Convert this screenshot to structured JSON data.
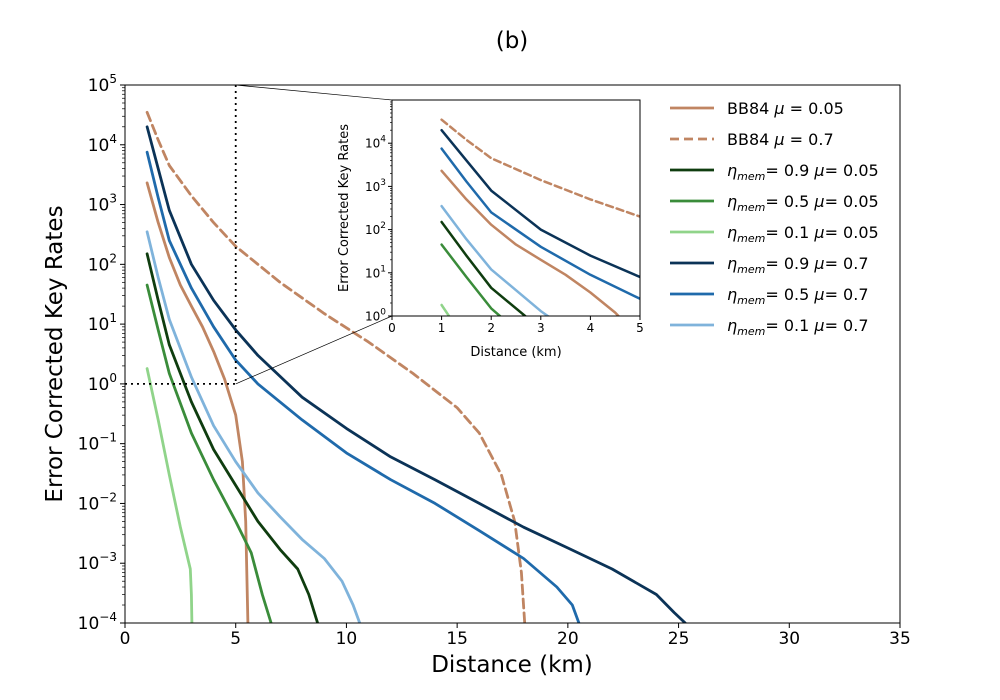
{
  "chart_data": {
    "type": "line",
    "title": "(b)",
    "xlabel": "Distance (km)",
    "ylabel": "Error Corrected Key Rates",
    "yscale": "log",
    "xlim": [
      0,
      35
    ],
    "ylim": [
      0.0001,
      100000
    ],
    "xticks": [
      "0",
      "5",
      "10",
      "15",
      "20",
      "25",
      "30",
      "35"
    ],
    "yticks": [
      {
        "base": "10",
        "exp": "−4"
      },
      {
        "base": "10",
        "exp": "−3"
      },
      {
        "base": "10",
        "exp": "−2"
      },
      {
        "base": "10",
        "exp": "−1"
      },
      {
        "base": "10",
        "exp": "0"
      },
      {
        "base": "10",
        "exp": "1"
      },
      {
        "base": "10",
        "exp": "2"
      },
      {
        "base": "10",
        "exp": "3"
      },
      {
        "base": "10",
        "exp": "4"
      },
      {
        "base": "10",
        "exp": "5"
      }
    ],
    "legend_position": "right",
    "series": [
      {
        "name": "BB84 μ = 0.05",
        "label_parts": [
          "BB84 ",
          "μ",
          " = 0.05"
        ],
        "color": "#c08562",
        "dash": "solid",
        "x": [
          1,
          1.5,
          2,
          2.5,
          3,
          3.5,
          4,
          4.5,
          5,
          5.3,
          5.45,
          5.55
        ],
        "y": [
          2300,
          500,
          130,
          45,
          20,
          9,
          3.5,
          1.2,
          0.3,
          0.05,
          0.005,
          0.0001
        ]
      },
      {
        "name": "BB84 μ = 0.7",
        "label_parts": [
          "BB84 ",
          "μ",
          " = 0.7"
        ],
        "color": "#c08562",
        "dash": "dashed",
        "x": [
          1,
          1.5,
          2,
          3,
          4,
          5,
          7,
          9,
          11,
          13,
          15,
          16,
          17,
          17.6,
          17.9,
          18.05
        ],
        "y": [
          35000,
          12000,
          4500,
          1400,
          500,
          200,
          50,
          15,
          5,
          1.5,
          0.4,
          0.15,
          0.03,
          0.005,
          0.0007,
          0.0001
        ]
      },
      {
        "name": "ηmem= 0.9 μ= 0.05",
        "label_parts": [
          "η",
          "mem",
          "= 0.9 ",
          "μ",
          "= 0.05"
        ],
        "color": "#0f3d0f",
        "dash": "solid",
        "x": [
          1,
          1.5,
          2,
          3,
          4,
          5,
          6,
          7,
          7.8,
          8.3,
          8.7
        ],
        "y": [
          150,
          25,
          4.5,
          0.5,
          0.08,
          0.02,
          0.005,
          0.0017,
          0.0008,
          0.0003,
          0.0001
        ]
      },
      {
        "name": "ηmem= 0.5 μ= 0.05",
        "label_parts": [
          "η",
          "mem",
          "= 0.5 ",
          "μ",
          "= 0.05"
        ],
        "color": "#3a8c3a",
        "dash": "solid",
        "x": [
          1,
          1.5,
          2,
          3,
          4,
          5,
          5.7,
          6.2,
          6.6
        ],
        "y": [
          45,
          8,
          1.5,
          0.15,
          0.025,
          0.005,
          0.0015,
          0.0003,
          0.0001
        ]
      },
      {
        "name": "ηmem= 0.1 μ= 0.05",
        "label_parts": [
          "η",
          "mem",
          "= 0.1 ",
          "μ",
          "= 0.05"
        ],
        "color": "#90d48a",
        "dash": "solid",
        "x": [
          1,
          1.5,
          2,
          2.5,
          2.95,
          3.0,
          3.02
        ],
        "y": [
          1.8,
          0.25,
          0.03,
          0.004,
          0.0008,
          0.0003,
          0.0001
        ]
      },
      {
        "name": "ηmem= 0.9 μ= 0.7",
        "label_parts": [
          "η",
          "mem",
          "= 0.9 ",
          "μ",
          "= 0.7"
        ],
        "color": "#0b3357",
        "dash": "solid",
        "x": [
          1,
          1.5,
          2,
          3,
          4,
          5,
          6,
          8,
          10,
          12,
          14,
          16,
          18,
          20,
          22,
          24,
          24.8,
          25.3
        ],
        "y": [
          20000,
          4000,
          800,
          100,
          25,
          8,
          3,
          0.6,
          0.18,
          0.06,
          0.025,
          0.01,
          0.004,
          0.0018,
          0.0008,
          0.0003,
          0.00015,
          0.0001
        ]
      },
      {
        "name": "ηmem= 0.5 μ= 0.7",
        "label_parts": [
          "η",
          "mem",
          "= 0.5 ",
          "μ",
          "= 0.7"
        ],
        "color": "#1f6aab",
        "dash": "solid",
        "x": [
          1,
          1.5,
          2,
          3,
          4,
          5,
          6,
          8,
          10,
          12,
          14,
          16,
          18,
          19.5,
          20.2,
          20.5
        ],
        "y": [
          7500,
          1300,
          250,
          40,
          9,
          2.5,
          1,
          0.25,
          0.07,
          0.025,
          0.01,
          0.0035,
          0.0012,
          0.0004,
          0.0002,
          0.0001
        ]
      },
      {
        "name": "ηmem= 0.1 μ= 0.7",
        "label_parts": [
          "η",
          "mem",
          "= 0.1 ",
          "μ",
          "= 0.7"
        ],
        "color": "#7fb3db",
        "dash": "solid",
        "x": [
          1,
          1.5,
          2,
          3,
          4,
          5,
          6,
          7,
          8,
          9,
          9.8,
          10.3,
          10.6
        ],
        "y": [
          350,
          60,
          12,
          1.3,
          0.2,
          0.05,
          0.015,
          0.006,
          0.0025,
          0.0012,
          0.0005,
          0.0002,
          0.0001
        ]
      }
    ],
    "inset": {
      "xlabel": "Distance (km)",
      "ylabel": "Error Corrected Key Rates",
      "xlim": [
        0,
        5
      ],
      "ylim": [
        1,
        100000
      ],
      "xticks": [
        "0",
        "1",
        "2",
        "3",
        "4",
        "5"
      ],
      "yticks": [
        {
          "base": "10",
          "exp": "0"
        },
        {
          "base": "10",
          "exp": "1"
        },
        {
          "base": "10",
          "exp": "2"
        },
        {
          "base": "10",
          "exp": "3"
        },
        {
          "base": "10",
          "exp": "4"
        }
      ]
    },
    "zoom_box": {
      "x_max": 5,
      "y_min": 1
    }
  }
}
